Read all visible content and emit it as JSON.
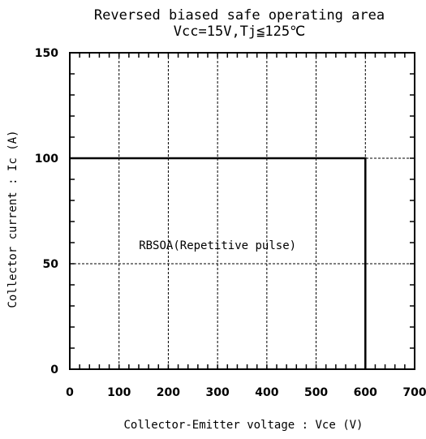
{
  "chart_data": {
    "type": "line",
    "title": "Reversed biased safe operating area",
    "subtitle": "Vcc=15V,Tj≦125℃",
    "xlabel": "Collector-Emitter voltage : Vce (V)",
    "ylabel": "Collector current : Ic (A)",
    "xlim": [
      0,
      700
    ],
    "ylim": [
      0,
      150
    ],
    "x_ticks": [
      0,
      100,
      200,
      300,
      400,
      500,
      600,
      700
    ],
    "y_ticks": [
      0,
      50,
      100,
      150
    ],
    "grid": true,
    "series": [
      {
        "name": "RBSOA(Repetitive pulse)",
        "x": [
          0,
          600,
          600
        ],
        "y": [
          100,
          100,
          0
        ]
      }
    ],
    "annotations": [
      {
        "text": "RBSOA(Repetitive pulse)",
        "x": 300,
        "y": 57
      }
    ]
  }
}
